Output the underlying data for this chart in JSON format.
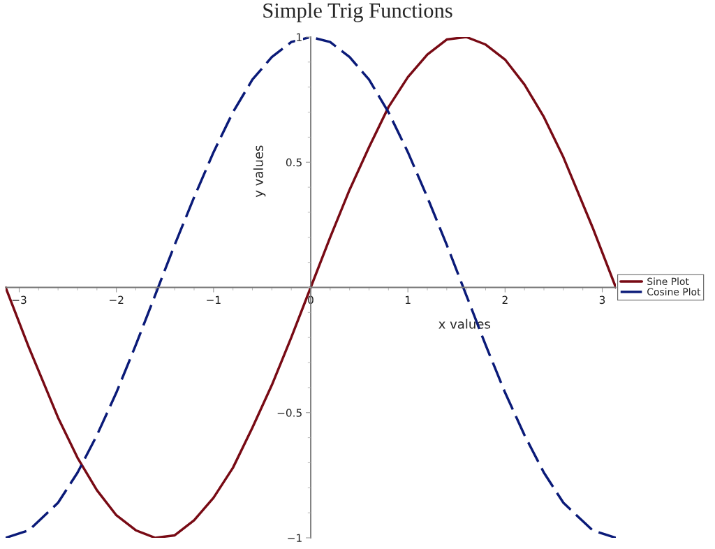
{
  "chart_data": {
    "type": "line",
    "title": "Simple Trig Functions",
    "xlabel": "x values",
    "ylabel": "y values",
    "x": [
      -3.14,
      -2.9,
      -2.6,
      -2.4,
      -2.2,
      -2.0,
      -1.8,
      -1.6,
      -1.4,
      -1.2,
      -1.0,
      -0.8,
      -0.6,
      -0.4,
      -0.2,
      0,
      0.2,
      0.4,
      0.6,
      0.8,
      1.0,
      1.2,
      1.4,
      1.6,
      1.8,
      2.0,
      2.2,
      2.4,
      2.6,
      2.9,
      3.14
    ],
    "series": [
      {
        "name": "Sine Plot",
        "color": "#780a14",
        "line_style": "solid",
        "values": [
          0.0,
          -0.24,
          -0.52,
          -0.68,
          -0.81,
          -0.91,
          -0.97,
          -1.0,
          -0.99,
          -0.93,
          -0.84,
          -0.72,
          -0.56,
          -0.39,
          -0.2,
          0.0,
          0.2,
          0.39,
          0.56,
          0.72,
          0.84,
          0.93,
          0.99,
          1.0,
          0.97,
          0.91,
          0.81,
          0.68,
          0.52,
          0.24,
          0.0
        ]
      },
      {
        "name": "Cosine Plot",
        "color": "#0a1a78",
        "line_style": "dashed",
        "values": [
          -1.0,
          -0.97,
          -0.86,
          -0.74,
          -0.59,
          -0.42,
          -0.23,
          -0.03,
          0.17,
          0.36,
          0.54,
          0.7,
          0.83,
          0.92,
          0.98,
          1.0,
          0.98,
          0.92,
          0.83,
          0.7,
          0.54,
          0.36,
          0.17,
          -0.03,
          -0.23,
          -0.42,
          -0.59,
          -0.74,
          -0.86,
          -0.97,
          -1.0
        ]
      }
    ],
    "xlim": [
      -3.14,
      3.14
    ],
    "ylim": [
      -1,
      1
    ],
    "xticks": [
      {
        "value": -3,
        "label": "−3"
      },
      {
        "value": -2,
        "label": "−2"
      },
      {
        "value": -1,
        "label": "−1"
      },
      0,
      1,
      2,
      3
    ],
    "yticks": [
      {
        "value": -1,
        "label": "−1"
      },
      {
        "value": -0.5,
        "label": "−0.5"
      },
      0.5,
      1
    ],
    "grid": false,
    "legend": "right"
  }
}
